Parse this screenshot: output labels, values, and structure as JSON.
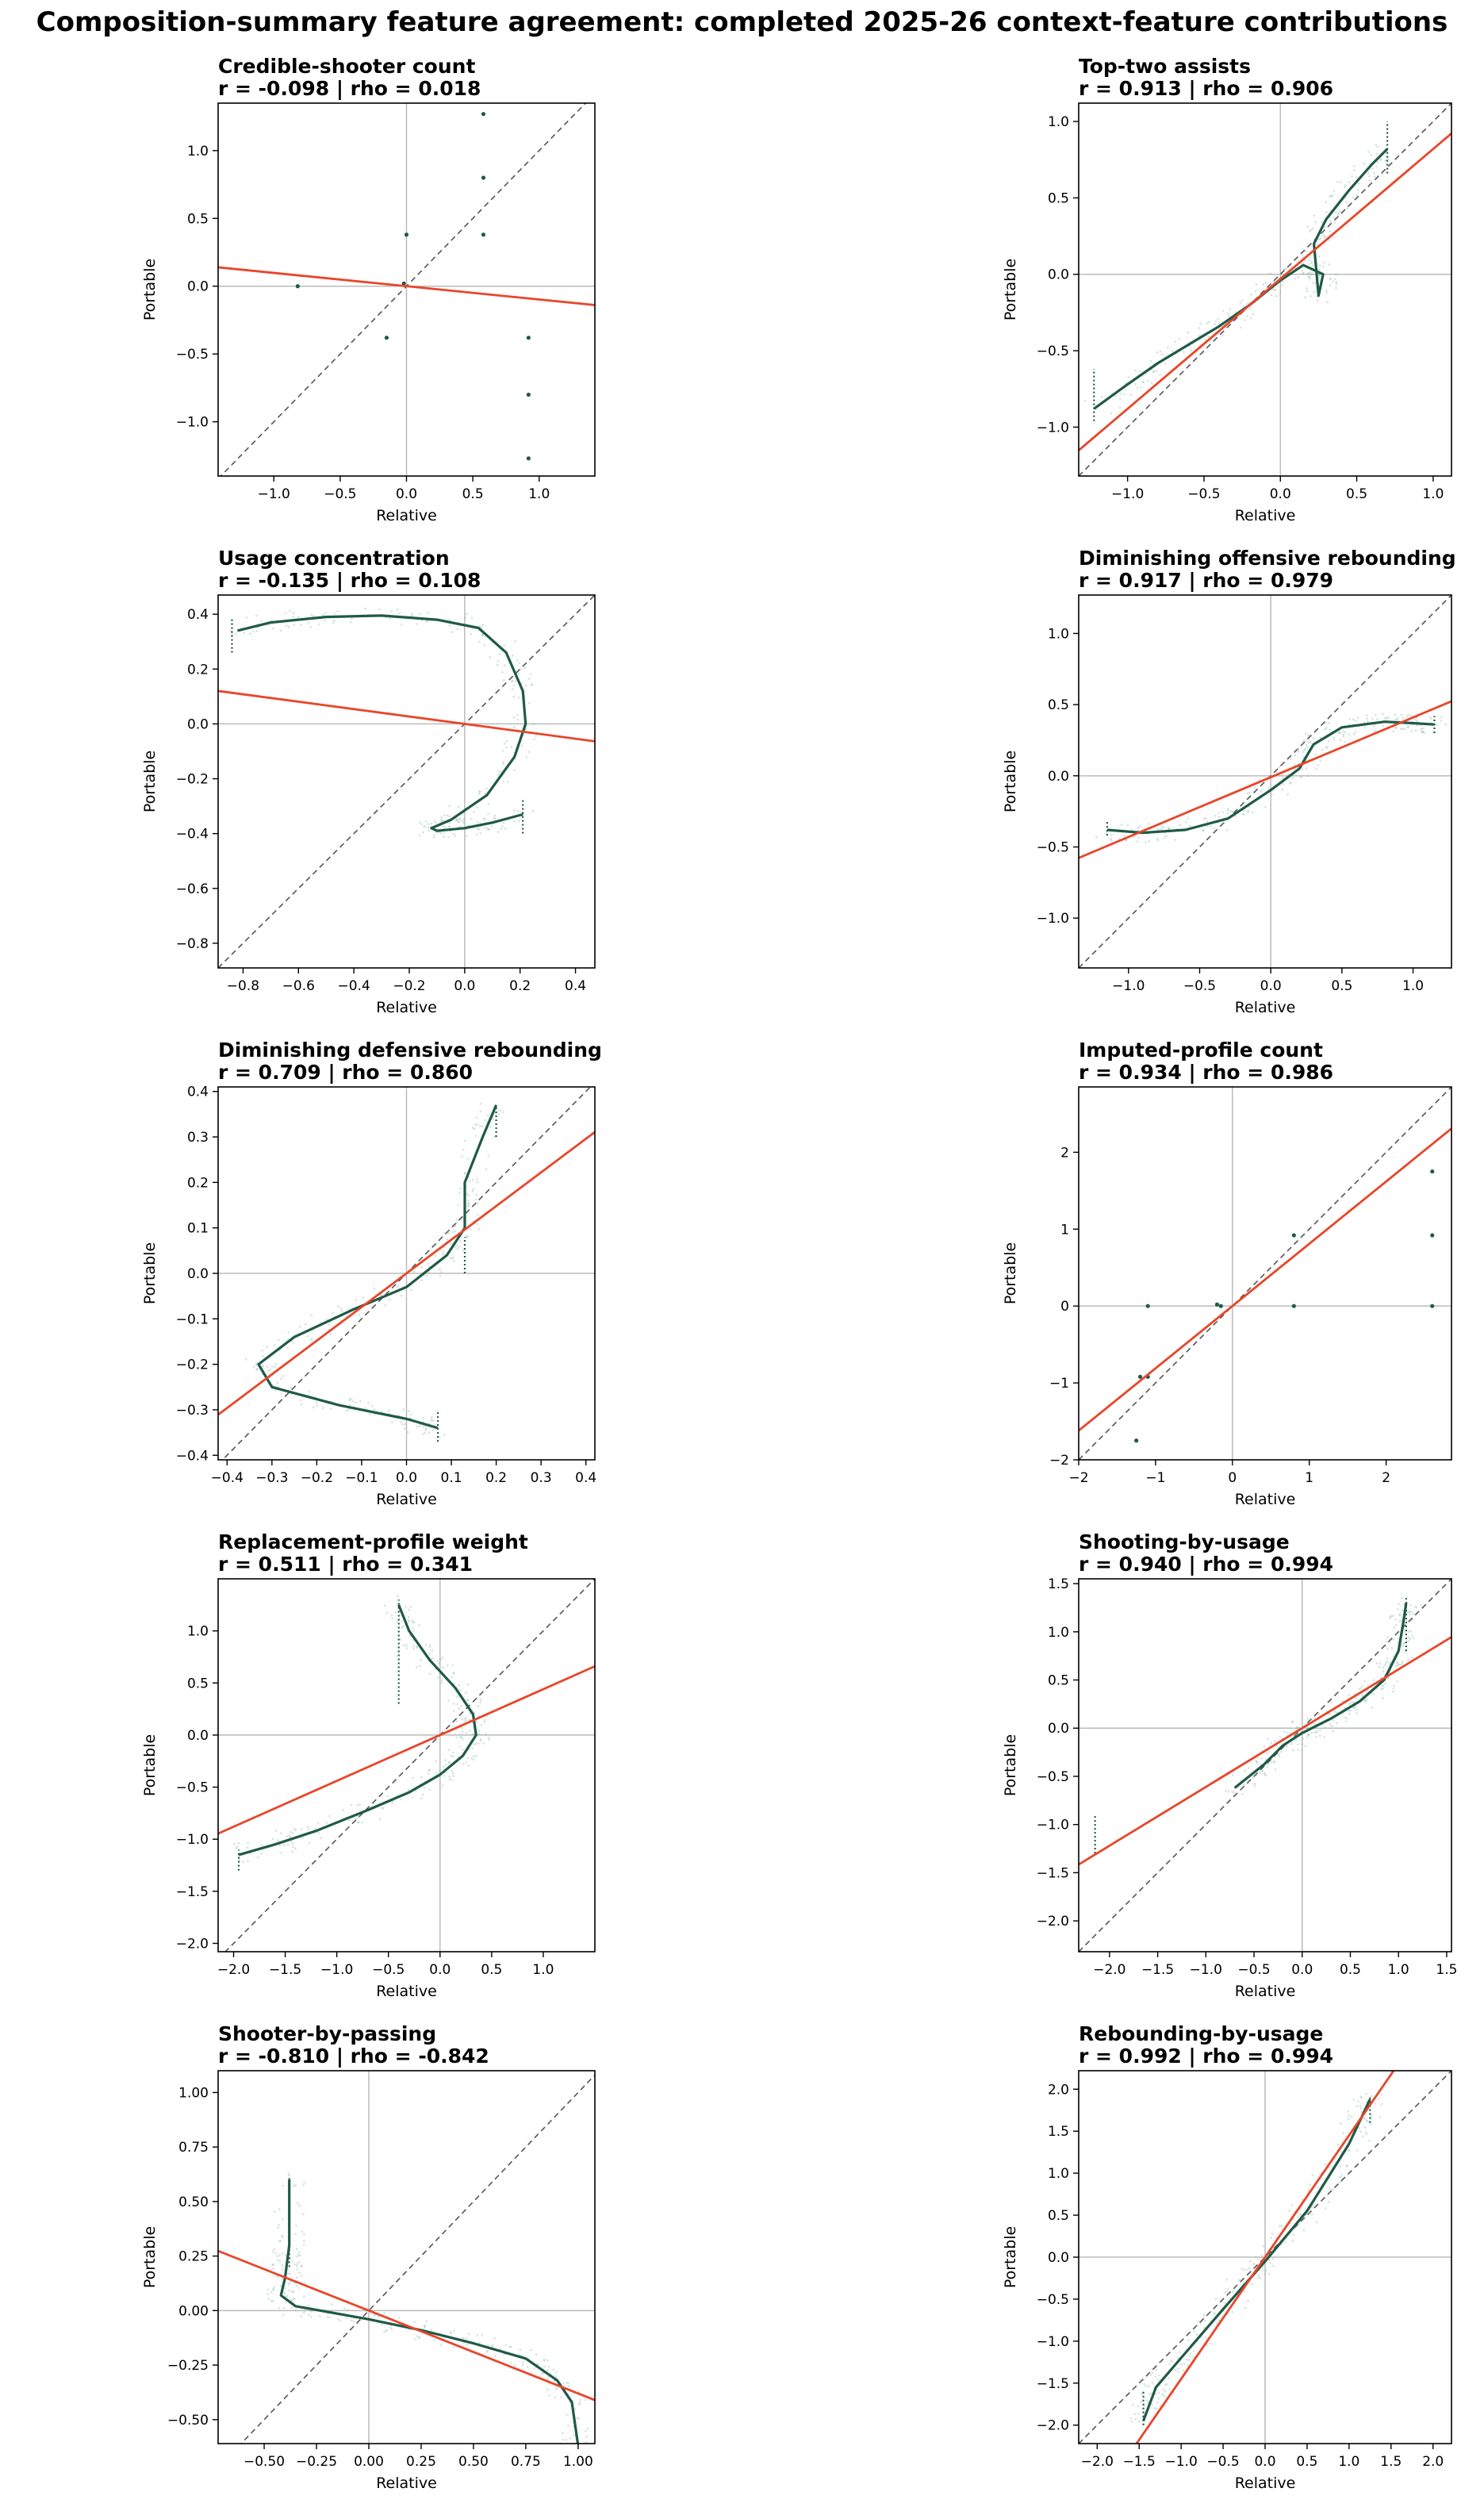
{
  "figure_title": "Composition-summary feature agreement: completed 2025-26 context-feature contributions",
  "colors": {
    "curve": "#1f5a47",
    "fit": "#e8462a",
    "scatter": "#8fb8a8",
    "identity": "#555555",
    "zero": "#bbbbbb"
  },
  "chart_data": [
    {
      "type": "scatter",
      "title": "Credible-shooter count",
      "stats": "r = -0.098 | rho = 0.018",
      "xlabel": "Relative",
      "ylabel": "Portable",
      "xlim": [
        -1.42,
        1.42
      ],
      "ylim": [
        -1.4,
        1.35
      ],
      "xticks": [
        -1.0,
        -0.5,
        0.0,
        0.5,
        1.0
      ],
      "yticks": [
        -1.0,
        -0.5,
        0.0,
        0.5,
        1.0
      ],
      "xtick_labels": [
        "−1.0",
        "−0.5",
        "0.0",
        "0.5",
        "1.0"
      ],
      "ytick_labels": [
        "−1.0",
        "−0.5",
        "0.0",
        "0.5",
        "1.0"
      ],
      "fit": [
        -0.098,
        0.0
      ],
      "points": [
        [
          -0.82,
          0.0
        ],
        [
          -0.15,
          -0.38
        ],
        [
          0.0,
          0.38
        ],
        [
          0.58,
          0.8
        ],
        [
          0.58,
          1.27
        ],
        [
          0.92,
          -0.38
        ],
        [
          0.92,
          -0.8
        ],
        [
          0.92,
          -1.27
        ],
        [
          0.58,
          0.38
        ],
        [
          -0.02,
          0.02
        ]
      ]
    },
    {
      "type": "scatter",
      "title": "Top-two assists",
      "stats": "r = 0.913 | rho = 0.906",
      "xlabel": "Relative",
      "ylabel": "Portable",
      "xlim": [
        -1.32,
        1.12
      ],
      "ylim": [
        -1.32,
        1.12
      ],
      "xticks": [
        -1.0,
        -0.5,
        0.0,
        0.5,
        1.0
      ],
      "yticks": [
        -1.0,
        -0.5,
        0.0,
        0.5,
        1.0
      ],
      "xtick_labels": [
        "−1.0",
        "−0.5",
        "0.0",
        "0.5",
        "1.0"
      ],
      "ytick_labels": [
        "−1.0",
        "−0.5",
        "0.0",
        "0.5",
        "1.0"
      ],
      "fit": [
        0.85,
        -0.03
      ],
      "curve": [
        [
          -1.22,
          -0.88
        ],
        [
          -1.0,
          -0.72
        ],
        [
          -0.8,
          -0.58
        ],
        [
          -0.6,
          -0.46
        ],
        [
          -0.4,
          -0.34
        ],
        [
          -0.2,
          -0.2
        ],
        [
          0.0,
          -0.04
        ],
        [
          0.15,
          0.06
        ],
        [
          0.28,
          0.0
        ],
        [
          0.25,
          -0.14
        ],
        [
          0.22,
          0.2
        ],
        [
          0.3,
          0.36
        ],
        [
          0.45,
          0.55
        ],
        [
          0.6,
          0.72
        ],
        [
          0.7,
          0.82
        ]
      ],
      "vsegs": [
        [
          -1.22,
          -0.96,
          -0.62
        ],
        [
          0.7,
          0.66,
          1.0
        ]
      ]
    },
    {
      "type": "scatter",
      "title": "Usage concentration",
      "stats": "r = -0.135 | rho = 0.108",
      "xlabel": "Relative",
      "ylabel": "Portable",
      "xlim": [
        -0.89,
        0.47
      ],
      "ylim": [
        -0.89,
        0.47
      ],
      "xticks": [
        -0.8,
        -0.6,
        -0.4,
        -0.2,
        0.0,
        0.2,
        0.4
      ],
      "yticks": [
        -0.8,
        -0.6,
        -0.4,
        -0.2,
        0.0,
        0.2,
        0.4
      ],
      "xtick_labels": [
        "−0.8",
        "−0.6",
        "−0.4",
        "−0.2",
        "0.0",
        "0.2",
        "0.4"
      ],
      "ytick_labels": [
        "−0.8",
        "−0.6",
        "−0.4",
        "−0.2",
        "0.0",
        "0.2",
        "0.4"
      ],
      "fit": [
        -0.135,
        0.0
      ],
      "curve": [
        [
          -0.82,
          0.34
        ],
        [
          -0.7,
          0.37
        ],
        [
          -0.5,
          0.39
        ],
        [
          -0.3,
          0.395
        ],
        [
          -0.1,
          0.38
        ],
        [
          0.05,
          0.35
        ],
        [
          0.15,
          0.26
        ],
        [
          0.21,
          0.12
        ],
        [
          0.22,
          0.0
        ],
        [
          0.18,
          -0.12
        ],
        [
          0.08,
          -0.26
        ],
        [
          -0.05,
          -0.35
        ],
        [
          -0.12,
          -0.38
        ],
        [
          -0.1,
          -0.39
        ],
        [
          0.0,
          -0.38
        ],
        [
          0.1,
          -0.36
        ],
        [
          0.21,
          -0.33
        ]
      ],
      "vsegs": [
        [
          -0.84,
          0.26,
          0.39
        ],
        [
          0.21,
          -0.4,
          -0.27
        ]
      ]
    },
    {
      "type": "scatter",
      "title": "Diminishing offensive rebounding",
      "stats": "r = 0.917 | rho = 0.979",
      "xlabel": "Relative",
      "ylabel": "Portable",
      "xlim": [
        -1.35,
        1.27
      ],
      "ylim": [
        -1.35,
        1.27
      ],
      "xticks": [
        -1.0,
        -0.5,
        0.0,
        0.5,
        1.0
      ],
      "yticks": [
        -1.0,
        -0.5,
        0.0,
        0.5,
        1.0
      ],
      "xtick_labels": [
        "−1.0",
        "−0.5",
        "0.0",
        "0.5",
        "1.0"
      ],
      "ytick_labels": [
        "−1.0",
        "−0.5",
        "0.0",
        "0.5",
        "1.0"
      ],
      "fit": [
        0.42,
        -0.01
      ],
      "curve": [
        [
          -1.15,
          -0.38
        ],
        [
          -0.9,
          -0.4
        ],
        [
          -0.6,
          -0.38
        ],
        [
          -0.3,
          -0.3
        ],
        [
          0.0,
          -0.1
        ],
        [
          0.2,
          0.05
        ],
        [
          0.3,
          0.22
        ],
        [
          0.5,
          0.34
        ],
        [
          0.8,
          0.38
        ],
        [
          1.0,
          0.37
        ],
        [
          1.15,
          0.36
        ]
      ],
      "vsegs": [
        [
          -1.15,
          -0.42,
          -0.32
        ],
        [
          1.15,
          0.3,
          0.42
        ]
      ]
    },
    {
      "type": "scatter",
      "title": "Diminishing defensive rebounding",
      "stats": "r = 0.709 | rho = 0.860",
      "xlabel": "Relative",
      "ylabel": "Portable",
      "xlim": [
        -0.42,
        0.42
      ],
      "ylim": [
        -0.41,
        0.41
      ],
      "xticks": [
        -0.4,
        -0.3,
        -0.2,
        -0.1,
        0.0,
        0.1,
        0.2,
        0.3,
        0.4
      ],
      "yticks": [
        -0.4,
        -0.3,
        -0.2,
        -0.1,
        0.0,
        0.1,
        0.2,
        0.3,
        0.4
      ],
      "xtick_labels": [
        "−0.4",
        "−0.3",
        "−0.2",
        "−0.1",
        "0.0",
        "0.1",
        "0.2",
        "0.3",
        "0.4"
      ],
      "ytick_labels": [
        "−0.4",
        "−0.3",
        "−0.2",
        "−0.1",
        "0.0",
        "0.1",
        "0.2",
        "0.3",
        "0.4"
      ],
      "fit": [
        0.74,
        0.0
      ],
      "curve": [
        [
          0.2,
          0.37
        ],
        [
          0.17,
          0.3
        ],
        [
          0.13,
          0.2
        ],
        [
          0.13,
          0.1
        ],
        [
          0.09,
          0.04
        ],
        [
          0.0,
          -0.03
        ],
        [
          -0.12,
          -0.08
        ],
        [
          -0.25,
          -0.14
        ],
        [
          -0.33,
          -0.2
        ],
        [
          -0.3,
          -0.25
        ],
        [
          -0.15,
          -0.29
        ],
        [
          0.0,
          -0.32
        ],
        [
          0.07,
          -0.34
        ]
      ],
      "vsegs": [
        [
          0.2,
          0.3,
          0.37
        ],
        [
          0.07,
          -0.37,
          -0.3
        ],
        [
          0.13,
          0.0,
          0.08
        ]
      ]
    },
    {
      "type": "scatter",
      "title": "Imputed-profile count",
      "stats": "r = 0.934 | rho = 0.986",
      "xlabel": "Relative",
      "ylabel": "Portable",
      "xlim": [
        -2.0,
        2.85
      ],
      "ylim": [
        -2.0,
        2.85
      ],
      "xticks": [
        -2,
        -1,
        0,
        1,
        2
      ],
      "yticks": [
        -2,
        -1,
        0,
        1,
        2
      ],
      "xtick_labels": [
        "−2",
        "−1",
        "0",
        "1",
        "2"
      ],
      "ytick_labels": [
        "−2",
        "−1",
        "0",
        "1",
        "2"
      ],
      "fit": [
        0.81,
        0.0
      ],
      "points": [
        [
          -1.25,
          -1.75
        ],
        [
          -1.2,
          -0.92
        ],
        [
          -1.1,
          -0.92
        ],
        [
          -1.1,
          0.0
        ],
        [
          -0.15,
          0.0
        ],
        [
          0.8,
          0.92
        ],
        [
          0.8,
          0.0
        ],
        [
          2.6,
          1.75
        ],
        [
          2.6,
          0.92
        ],
        [
          2.6,
          0.0
        ],
        [
          -0.2,
          0.02
        ]
      ]
    },
    {
      "type": "scatter",
      "title": "Replacement-profile weight",
      "stats": "r = 0.511 | rho = 0.341",
      "xlabel": "Relative",
      "ylabel": "Portable",
      "xlim": [
        -2.15,
        1.5
      ],
      "ylim": [
        -2.08,
        1.5
      ],
      "xticks": [
        -2.0,
        -1.5,
        -1.0,
        -0.5,
        0.0,
        0.5,
        1.0
      ],
      "yticks": [
        -2.0,
        -1.5,
        -1.0,
        -0.5,
        0.0,
        0.5,
        1.0
      ],
      "xtick_labels": [
        "−2.0",
        "−1.5",
        "−1.0",
        "−0.5",
        "0.0",
        "0.5",
        "1.0"
      ],
      "ytick_labels": [
        "−2.0",
        "−1.5",
        "−1.0",
        "−0.5",
        "0.0",
        "0.5",
        "1.0"
      ],
      "fit": [
        0.44,
        0.0
      ],
      "curve": [
        [
          -0.4,
          1.25
        ],
        [
          -0.3,
          1.0
        ],
        [
          -0.1,
          0.72
        ],
        [
          0.15,
          0.45
        ],
        [
          0.32,
          0.2
        ],
        [
          0.35,
          0.0
        ],
        [
          0.22,
          -0.2
        ],
        [
          0.0,
          -0.38
        ],
        [
          -0.3,
          -0.55
        ],
        [
          -0.7,
          -0.72
        ],
        [
          -1.2,
          -0.92
        ],
        [
          -1.6,
          -1.05
        ],
        [
          -1.95,
          -1.15
        ]
      ],
      "vsegs": [
        [
          -0.4,
          0.3,
          1.3
        ],
        [
          -1.95,
          -1.3,
          -1.1
        ]
      ]
    },
    {
      "type": "scatter",
      "title": "Shooting-by-usage",
      "stats": "r = 0.940 | rho = 0.994",
      "xlabel": "Relative",
      "ylabel": "Portable",
      "xlim": [
        -2.32,
        1.55
      ],
      "ylim": [
        -2.32,
        1.55
      ],
      "xticks": [
        -2.0,
        -1.5,
        -1.0,
        -0.5,
        0.0,
        0.5,
        1.0,
        1.5
      ],
      "yticks": [
        -2.0,
        -1.5,
        -1.0,
        -0.5,
        0.0,
        0.5,
        1.0,
        1.5
      ],
      "xtick_labels": [
        "−2.0",
        "−1.5",
        "−1.0",
        "−0.5",
        "0.0",
        "0.5",
        "1.0",
        "1.5"
      ],
      "ytick_labels": [
        "−2.0",
        "−1.5",
        "−1.0",
        "−0.5",
        "0.0",
        "0.5",
        "1.0",
        "1.5"
      ],
      "fit": [
        0.61,
        0.0
      ],
      "curve": [
        [
          -0.7,
          -0.62
        ],
        [
          -0.4,
          -0.38
        ],
        [
          -0.2,
          -0.18
        ],
        [
          0.0,
          -0.05
        ],
        [
          0.3,
          0.1
        ],
        [
          0.6,
          0.28
        ],
        [
          0.85,
          0.5
        ],
        [
          1.0,
          0.8
        ],
        [
          1.05,
          1.1
        ],
        [
          1.08,
          1.3
        ]
      ],
      "vsegs": [
        [
          -2.15,
          -1.3,
          -0.9
        ],
        [
          1.08,
          0.8,
          1.35
        ]
      ]
    },
    {
      "type": "scatter",
      "title": "Shooter-by-passing",
      "stats": "r = -0.810 | rho = -0.842",
      "xlabel": "Relative",
      "ylabel": "Portable",
      "xlim": [
        -0.72,
        1.08
      ],
      "ylim": [
        -0.61,
        1.1
      ],
      "xticks": [
        -0.5,
        -0.25,
        0.0,
        0.25,
        0.5,
        0.75,
        1.0
      ],
      "yticks": [
        -0.5,
        -0.25,
        0.0,
        0.25,
        0.5,
        0.75,
        1.0
      ],
      "xtick_labels": [
        "−0.50",
        "−0.25",
        "0.00",
        "0.25",
        "0.50",
        "0.75",
        "1.00"
      ],
      "ytick_labels": [
        "−0.50",
        "−0.25",
        "0.00",
        "0.25",
        "0.50",
        "0.75",
        "1.00"
      ],
      "fit": [
        -0.38,
        0.0
      ],
      "curve": [
        [
          -0.38,
          0.6
        ],
        [
          -0.38,
          0.3
        ],
        [
          -0.4,
          0.15
        ],
        [
          -0.42,
          0.07
        ],
        [
          -0.35,
          0.02
        ],
        [
          0.0,
          -0.04
        ],
        [
          0.25,
          -0.09
        ],
        [
          0.5,
          -0.15
        ],
        [
          0.75,
          -0.22
        ],
        [
          0.9,
          -0.32
        ],
        [
          0.97,
          -0.42
        ],
        [
          1.0,
          -0.62
        ]
      ],
      "vsegs": [
        [
          -0.38,
          0.2,
          0.62
        ]
      ]
    },
    {
      "type": "scatter",
      "title": "Rebounding-by-usage",
      "stats": "r = 0.992 | rho = 0.994",
      "xlabel": "Relative",
      "ylabel": "Portable",
      "xlim": [
        -2.22,
        2.22
      ],
      "ylim": [
        -2.22,
        2.22
      ],
      "xticks": [
        -2.0,
        -1.5,
        -1.0,
        -0.5,
        0.0,
        0.5,
        1.0,
        1.5,
        2.0
      ],
      "yticks": [
        -2.0,
        -1.5,
        -1.0,
        -0.5,
        0.0,
        0.5,
        1.0,
        1.5,
        2.0
      ],
      "xtick_labels": [
        "−2.0",
        "−1.5",
        "−1.0",
        "−0.5",
        "0.0",
        "0.5",
        "1.0",
        "1.5",
        "2.0"
      ],
      "ytick_labels": [
        "−2.0",
        "−1.5",
        "−1.0",
        "−0.5",
        "0.0",
        "0.5",
        "1.0",
        "1.5",
        "2.0"
      ],
      "fit": [
        1.45,
        0.0
      ],
      "curve": [
        [
          -1.45,
          -1.95
        ],
        [
          -1.3,
          -1.55
        ],
        [
          -1.0,
          -1.2
        ],
        [
          -0.5,
          -0.62
        ],
        [
          0.0,
          -0.05
        ],
        [
          0.5,
          0.55
        ],
        [
          1.0,
          1.35
        ],
        [
          1.25,
          1.88
        ]
      ],
      "vsegs": [
        [
          -1.45,
          -2.0,
          -1.6
        ],
        [
          1.25,
          1.6,
          1.92
        ]
      ]
    }
  ]
}
